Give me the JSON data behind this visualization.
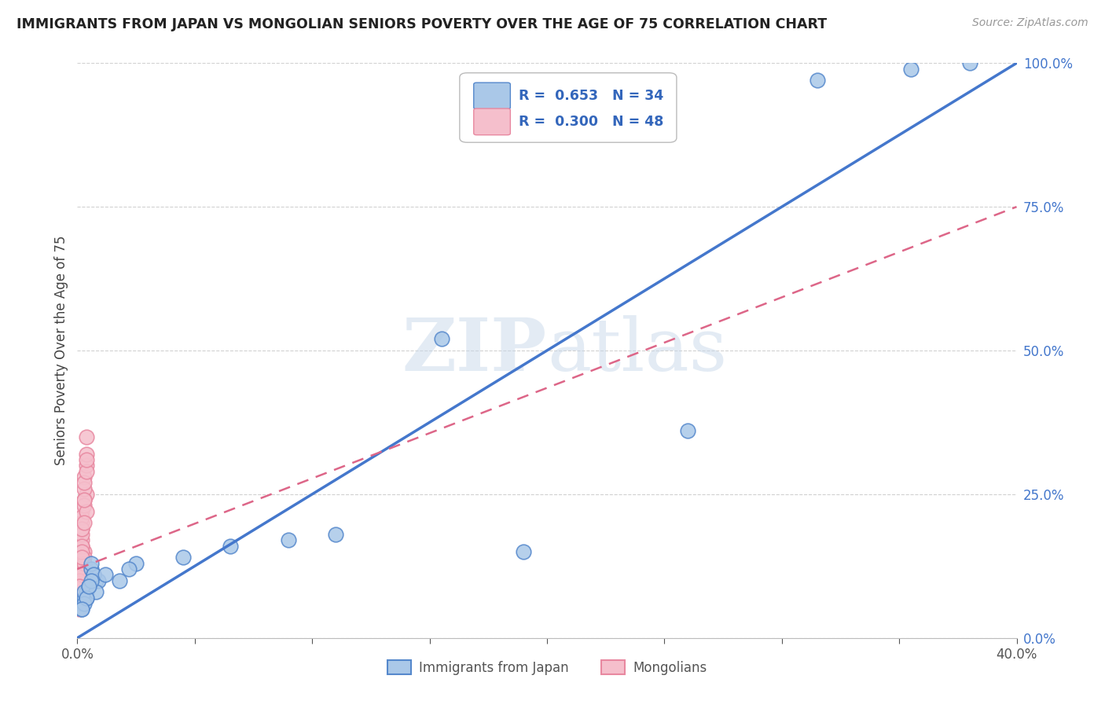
{
  "title": "IMMIGRANTS FROM JAPAN VS MONGOLIAN SENIORS POVERTY OVER THE AGE OF 75 CORRELATION CHART",
  "source": "Source: ZipAtlas.com",
  "ylabel": "Seniors Poverty Over the Age of 75",
  "xlim": [
    0.0,
    0.4
  ],
  "ylim": [
    0.0,
    1.0
  ],
  "xticks": [
    0.0,
    0.05,
    0.1,
    0.15,
    0.2,
    0.25,
    0.3,
    0.35,
    0.4
  ],
  "xticklabels": [
    "0.0%",
    "",
    "",
    "",
    "",
    "",
    "",
    "",
    "40.0%"
  ],
  "yticks": [
    0.0,
    0.25,
    0.5,
    0.75,
    1.0
  ],
  "yticklabels": [
    "0.0%",
    "25.0%",
    "50.0%",
    "75.0%",
    "100.0%"
  ],
  "blue_R": 0.653,
  "blue_N": 34,
  "pink_R": 0.3,
  "pink_N": 48,
  "blue_color": "#aac8e8",
  "pink_color": "#f5bfcc",
  "blue_edge_color": "#5588cc",
  "pink_edge_color": "#e888a0",
  "blue_line_color": "#4477cc",
  "pink_line_color": "#dd6688",
  "watermark_color": "#c8d8ea",
  "watermark_alpha": 0.5,
  "blue_scatter_x": [
    0.002,
    0.004,
    0.006,
    0.003,
    0.008,
    0.005,
    0.002,
    0.007,
    0.004,
    0.003,
    0.006,
    0.009,
    0.005,
    0.003,
    0.007,
    0.008,
    0.004,
    0.002,
    0.006,
    0.005,
    0.025,
    0.018,
    0.012,
    0.022,
    0.045,
    0.065,
    0.09,
    0.11,
    0.155,
    0.19,
    0.26,
    0.315,
    0.355,
    0.38
  ],
  "blue_scatter_y": [
    0.06,
    0.08,
    0.12,
    0.07,
    0.1,
    0.09,
    0.05,
    0.11,
    0.07,
    0.08,
    0.13,
    0.1,
    0.09,
    0.06,
    0.11,
    0.08,
    0.07,
    0.05,
    0.1,
    0.09,
    0.13,
    0.1,
    0.11,
    0.12,
    0.14,
    0.16,
    0.17,
    0.18,
    0.52,
    0.15,
    0.36,
    0.97,
    0.99,
    1.0
  ],
  "pink_scatter_x": [
    0.001,
    0.002,
    0.001,
    0.003,
    0.002,
    0.001,
    0.003,
    0.002,
    0.004,
    0.003,
    0.001,
    0.002,
    0.001,
    0.003,
    0.002,
    0.004,
    0.003,
    0.002,
    0.001,
    0.003,
    0.002,
    0.001,
    0.004,
    0.002,
    0.003,
    0.001,
    0.002,
    0.003,
    0.001,
    0.004,
    0.002,
    0.003,
    0.001,
    0.002,
    0.004,
    0.003,
    0.001,
    0.002,
    0.003,
    0.004,
    0.002,
    0.001,
    0.003,
    0.002,
    0.001,
    0.004,
    0.003,
    0.002
  ],
  "pink_scatter_y": [
    0.08,
    0.12,
    0.06,
    0.15,
    0.1,
    0.18,
    0.07,
    0.22,
    0.25,
    0.28,
    0.09,
    0.16,
    0.11,
    0.13,
    0.2,
    0.3,
    0.24,
    0.19,
    0.08,
    0.14,
    0.17,
    0.09,
    0.32,
    0.21,
    0.26,
    0.07,
    0.12,
    0.23,
    0.06,
    0.35,
    0.18,
    0.27,
    0.1,
    0.16,
    0.22,
    0.13,
    0.05,
    0.19,
    0.08,
    0.29,
    0.11,
    0.07,
    0.24,
    0.15,
    0.09,
    0.31,
    0.2,
    0.14
  ],
  "blue_line_x": [
    0.0,
    0.4
  ],
  "blue_line_y": [
    0.0,
    1.0
  ],
  "pink_line_x": [
    0.0,
    0.4
  ],
  "pink_line_y": [
    0.12,
    0.75
  ]
}
